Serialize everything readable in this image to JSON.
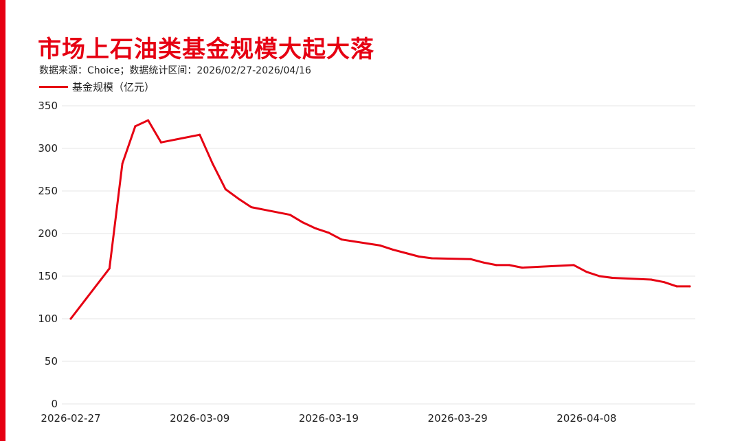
{
  "colors": {
    "accent": "#e60012",
    "line": "#e60012",
    "grid": "#e6e6e6",
    "text": "#222222"
  },
  "header": {
    "title": "市场上石油类基金规模大起大落",
    "subtitle": "数据来源：Choice；数据统计区间：2026/02/27-2026/04/16"
  },
  "chart_data": {
    "type": "line",
    "title": "市场上石油类基金规模大起大落",
    "xlabel": "",
    "ylabel": "",
    "ylim": [
      0,
      350
    ],
    "yticks": [
      0,
      50,
      100,
      150,
      200,
      250,
      300,
      350
    ],
    "xtick_labels": [
      "2026-02-27",
      "2026-03-09",
      "2026-03-19",
      "2026-03-29",
      "2026-04-08"
    ],
    "xlim": [
      "2026-02-27",
      "2026-04-16"
    ],
    "grid": true,
    "legend_position": "top-left",
    "series": [
      {
        "name": "基金规模（亿元）",
        "points": [
          [
            "2026-02-27",
            100
          ],
          [
            "2026-03-02",
            159
          ],
          [
            "2026-03-03",
            282
          ],
          [
            "2026-03-04",
            326
          ],
          [
            "2026-03-05",
            333
          ],
          [
            "2026-03-06",
            307
          ],
          [
            "2026-03-09",
            316
          ],
          [
            "2026-03-10",
            282
          ],
          [
            "2026-03-11",
            252
          ],
          [
            "2026-03-12",
            241
          ],
          [
            "2026-03-13",
            231
          ],
          [
            "2026-03-16",
            222
          ],
          [
            "2026-03-17",
            213
          ],
          [
            "2026-03-18",
            206
          ],
          [
            "2026-03-19",
            201
          ],
          [
            "2026-03-20",
            193
          ],
          [
            "2026-03-23",
            186
          ],
          [
            "2026-03-24",
            181
          ],
          [
            "2026-03-25",
            177
          ],
          [
            "2026-03-26",
            173
          ],
          [
            "2026-03-27",
            171
          ],
          [
            "2026-03-30",
            170
          ],
          [
            "2026-03-31",
            166
          ],
          [
            "2026-04-01",
            163
          ],
          [
            "2026-04-02",
            163
          ],
          [
            "2026-04-03",
            160
          ],
          [
            "2026-04-07",
            163
          ],
          [
            "2026-04-08",
            155
          ],
          [
            "2026-04-09",
            150
          ],
          [
            "2026-04-10",
            148
          ],
          [
            "2026-04-13",
            146
          ],
          [
            "2026-04-14",
            143
          ],
          [
            "2026-04-15",
            138
          ],
          [
            "2026-04-16",
            138
          ]
        ]
      }
    ]
  }
}
